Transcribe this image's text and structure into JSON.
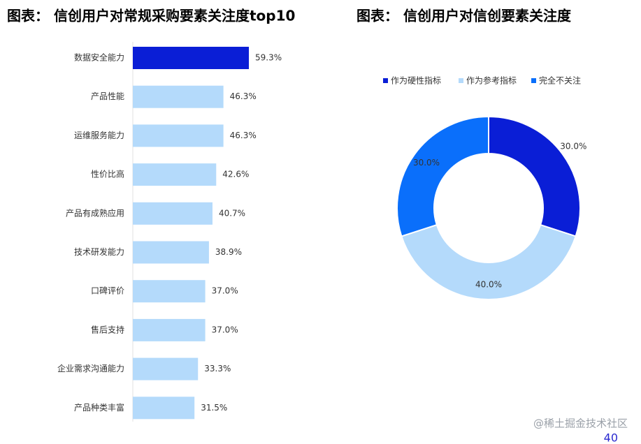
{
  "chart_data": [
    {
      "type": "bar",
      "title": "图表： 信创用户对常规采购要素关注度top10",
      "categories": [
        "数据安全能力",
        "产品性能",
        "运维服务能力",
        "性价比高",
        "产品有成熟应用",
        "技术研发能力",
        "口碑评价",
        "售后支持",
        "企业需求沟通能力",
        "产品种类丰富"
      ],
      "values": [
        59.3,
        46.3,
        46.3,
        42.6,
        40.7,
        38.9,
        37.0,
        37.0,
        33.3,
        31.5
      ],
      "value_labels": [
        "59.3%",
        "46.3%",
        "46.3%",
        "42.6%",
        "40.7%",
        "38.9%",
        "37.0%",
        "37.0%",
        "33.3%",
        "31.5%"
      ],
      "colors": [
        "#0a1ed6",
        "#b4dafb",
        "#b4dafb",
        "#b4dafb",
        "#b4dafb",
        "#b4dafb",
        "#b4dafb",
        "#b4dafb",
        "#b4dafb",
        "#b4dafb"
      ]
    },
    {
      "type": "donut",
      "title": "图表： 信创用户对信创要素关注度",
      "labels": [
        "作为硬性指标",
        "作为参考指标",
        "完全不关注"
      ],
      "values": [
        30.0,
        40.0,
        30.0
      ],
      "value_labels": [
        "30.0%",
        "40.0%",
        "30.0%"
      ],
      "colors": [
        "#0a1ed6",
        "#b4dafb",
        "#0a6ffb"
      ]
    }
  ],
  "watermark": "@稀土掘金技术社区",
  "page_number": 40
}
